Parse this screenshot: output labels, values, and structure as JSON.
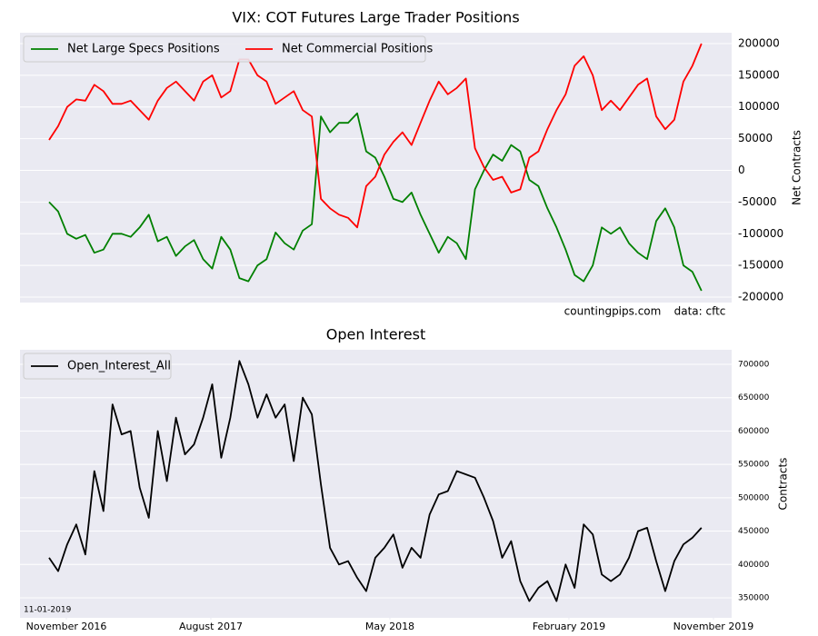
{
  "chart_data": [
    {
      "type": "line",
      "title": "VIX: COT Futures Large Trader Positions",
      "y_label": "Net Contracts",
      "annotations": [
        "countingpips.com",
        "data: cftc"
      ],
      "xlim": [
        -3.21,
        75.33
      ],
      "ylim": [
        -208600,
        217200
      ],
      "yticks": [
        200000,
        150000,
        100000,
        50000,
        0,
        -50000,
        -100000,
        -150000,
        -200000
      ],
      "grid": true,
      "legend": "upper left",
      "series": [
        {
          "name": "Net Large Specs Positions",
          "color": "#008000",
          "values": [
            -50000,
            -65000,
            -100000,
            -108000,
            -102000,
            -130000,
            -125000,
            -100000,
            -100000,
            -105000,
            -90000,
            -70000,
            -112000,
            -105000,
            -135000,
            -120000,
            -110000,
            -140000,
            -155000,
            -105000,
            -125000,
            -170000,
            -175000,
            -150000,
            -140000,
            -98000,
            -115000,
            -125000,
            -95000,
            -85000,
            85000,
            60000,
            75000,
            75000,
            90000,
            30000,
            20000,
            -10000,
            -45000,
            -50000,
            -35000,
            -70000,
            -100000,
            -130000,
            -105000,
            -115000,
            -140000,
            -30000,
            0,
            25000,
            15000,
            40000,
            30000,
            -15000,
            -25000,
            -60000,
            -90000,
            -125000,
            -165000,
            -175000,
            -150000,
            -90000,
            -100000,
            -90000,
            -115000,
            -130000,
            -140000,
            -80000,
            -60000,
            -90000,
            -150000,
            -160000,
            -190000
          ]
        },
        {
          "name": "Net Commercial Positions",
          "color": "#ff0000",
          "values": [
            48000,
            70000,
            100000,
            112000,
            110000,
            135000,
            125000,
            105000,
            105000,
            110000,
            95000,
            80000,
            110000,
            130000,
            140000,
            125000,
            110000,
            140000,
            150000,
            115000,
            125000,
            175000,
            175000,
            150000,
            140000,
            105000,
            115000,
            125000,
            95000,
            85000,
            -45000,
            -60000,
            -70000,
            -75000,
            -90000,
            -25000,
            -10000,
            25000,
            45000,
            60000,
            40000,
            75000,
            110000,
            140000,
            120000,
            130000,
            145000,
            35000,
            5000,
            -15000,
            -10000,
            -35000,
            -30000,
            20000,
            30000,
            65000,
            95000,
            120000,
            165000,
            180000,
            150000,
            95000,
            110000,
            95000,
            115000,
            135000,
            145000,
            85000,
            65000,
            80000,
            140000,
            165000,
            200000
          ]
        }
      ]
    },
    {
      "type": "line",
      "title": "Open Interest",
      "y_label": "Contracts",
      "annotations": [
        "11-01-2019"
      ],
      "xlim": [
        -3.21,
        75.33
      ],
      "ylim": [
        320000,
        721800
      ],
      "xticks": [
        {
          "value": 1.91,
          "label": "November 2016"
        },
        {
          "value": 17.85,
          "label": "August 2017"
        },
        {
          "value": 37.61,
          "label": "May 2018"
        },
        {
          "value": 57.37,
          "label": "February 2019"
        },
        {
          "value": 73.32,
          "label": "November 2019"
        }
      ],
      "yticks": [
        700000,
        650000,
        600000,
        550000,
        500000,
        450000,
        400000,
        350000
      ],
      "grid": true,
      "legend": "upper left",
      "series": [
        {
          "name": "Open_Interest_All",
          "color": "#000000",
          "values": [
            410000,
            390000,
            430000,
            460000,
            415000,
            540000,
            480000,
            640000,
            595000,
            600000,
            515000,
            470000,
            600000,
            525000,
            620000,
            565000,
            580000,
            620000,
            670000,
            560000,
            620000,
            705000,
            670000,
            620000,
            655000,
            620000,
            640000,
            555000,
            650000,
            625000,
            520000,
            425000,
            400000,
            405000,
            380000,
            360000,
            410000,
            425000,
            445000,
            395000,
            425000,
            410000,
            475000,
            505000,
            510000,
            540000,
            535000,
            530000,
            500000,
            465000,
            410000,
            435000,
            375000,
            345000,
            365000,
            375000,
            345000,
            400000,
            365000,
            460000,
            445000,
            385000,
            375000,
            385000,
            410000,
            450000,
            455000,
            405000,
            360000,
            405000,
            430000,
            440000,
            455000
          ]
        }
      ]
    }
  ]
}
